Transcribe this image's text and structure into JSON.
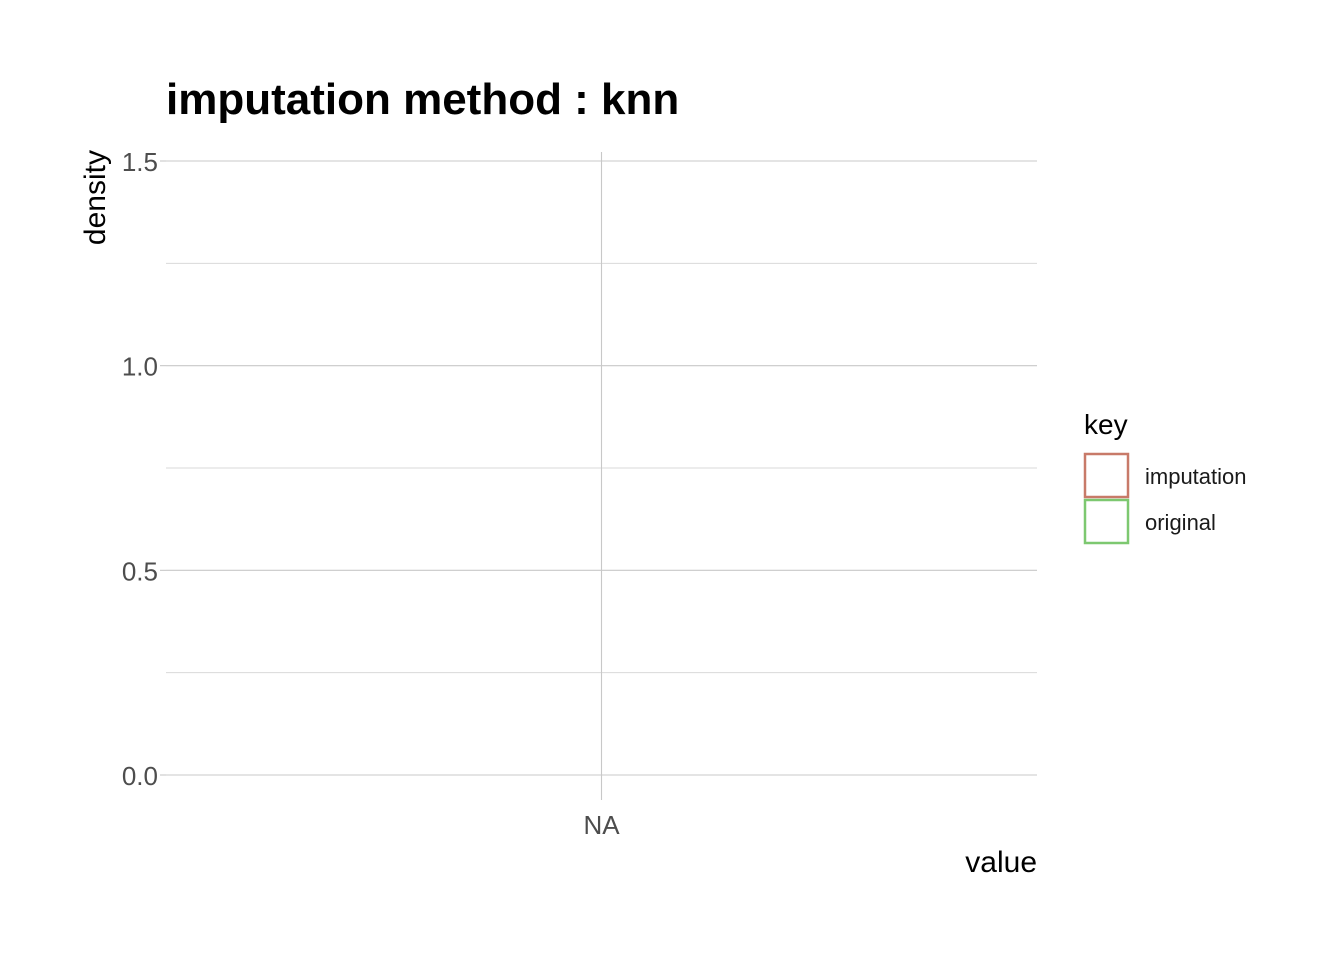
{
  "chart_data": {
    "type": "line",
    "title": "imputation method : knn",
    "xlabel": "value",
    "ylabel": "density",
    "x_ticks": [
      "NA"
    ],
    "y_ticks": [
      "0.0",
      "0.5",
      "1.0",
      "1.5"
    ],
    "ylim": [
      0,
      1.5
    ],
    "grid": true,
    "legend": {
      "title": "key",
      "placement": "right",
      "items": [
        {
          "label": "imputation",
          "color": "#c87a69"
        },
        {
          "label": "original",
          "color": "#7dc870"
        }
      ]
    },
    "series": [
      {
        "name": "imputation",
        "values": []
      },
      {
        "name": "original",
        "values": []
      }
    ]
  }
}
